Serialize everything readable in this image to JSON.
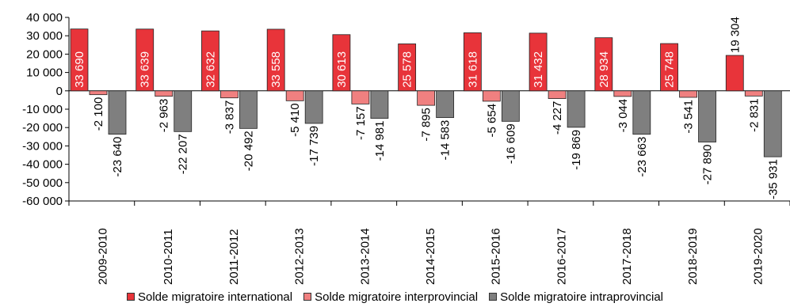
{
  "chart_data": {
    "type": "bar",
    "categories": [
      "2009-2010",
      "2010-2011",
      "2011-2012",
      "2012-2013",
      "2013-2014",
      "2014-2015",
      "2015-2016",
      "2016-2017",
      "2017-2018",
      "2018-2019",
      "2019-2020"
    ],
    "series": [
      {
        "name": "Solde migratoire international",
        "color": "#e8343a",
        "values": [
          33690,
          33639,
          32632,
          33558,
          30613,
          25578,
          31618,
          31432,
          28934,
          25748,
          19304
        ],
        "labels": [
          "33 690",
          "33 639",
          "32 632",
          "33 558",
          "30 613",
          "25 578",
          "31 618",
          "31 432",
          "28 934",
          "25 748",
          "19 304"
        ]
      },
      {
        "name": "Solde migratoire interprovincial",
        "color": "#f08080",
        "values": [
          -2100,
          -2963,
          -3837,
          -5410,
          -7157,
          -7895,
          -5654,
          -4227,
          -3044,
          -3541,
          -2831
        ],
        "labels": [
          "-2 100",
          "-2 963",
          "-3 837",
          "-5 410",
          "-7 157",
          "-7 895",
          "-5 654",
          "-4 227",
          "-3 044",
          "-3 541",
          "-2 831"
        ]
      },
      {
        "name": "Solde migratoire intraprovincial",
        "color": "#7f7f7f",
        "values": [
          -23640,
          -22207,
          -20492,
          -17739,
          -14981,
          -14583,
          -16609,
          -19869,
          -23663,
          -27890,
          -35931
        ],
        "labels": [
          "-23 640",
          "-22 207",
          "-20 492",
          "-17 739",
          "-14 981",
          "-14 583",
          "-16 609",
          "-19 869",
          "-23 663",
          "-27 890",
          "-35 931"
        ]
      }
    ],
    "yticks": [
      40000,
      30000,
      20000,
      10000,
      0,
      -10000,
      -20000,
      -30000,
      -40000,
      -50000,
      -60000
    ],
    "ytick_labels": [
      "40 000",
      "30 000",
      "20 000",
      "10 000",
      "0",
      "-10 000",
      "-20 000",
      "-30 000",
      "-40 000",
      "-50 000",
      "-60 000"
    ],
    "ylim": [
      -60000,
      40000
    ],
    "grid": false,
    "legend_position": "bottom"
  }
}
